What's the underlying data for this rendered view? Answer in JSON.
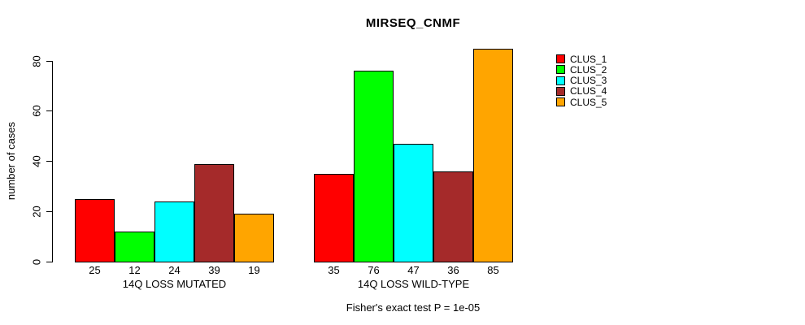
{
  "chart_data": {
    "type": "bar",
    "title": "MIRSEQ_CNMF",
    "ylabel": "number of cases",
    "xlabel": "",
    "categories": [
      "14Q LOSS MUTATED",
      "14Q LOSS WILD-TYPE"
    ],
    "series": [
      {
        "name": "CLUS_1",
        "color": "#FF0000",
        "values": [
          25,
          35
        ]
      },
      {
        "name": "CLUS_2",
        "color": "#00FF00",
        "values": [
          12,
          76
        ]
      },
      {
        "name": "CLUS_3",
        "color": "#00FFFF",
        "values": [
          24,
          47
        ]
      },
      {
        "name": "CLUS_4",
        "color": "#A52A2A",
        "values": [
          39,
          36
        ]
      },
      {
        "name": "CLUS_5",
        "color": "#FFA500",
        "values": [
          19,
          85
        ]
      }
    ],
    "bar_value_labels": [
      [
        25,
        12,
        24,
        39,
        19
      ],
      [
        35,
        76,
        47,
        36,
        85
      ]
    ],
    "yticks": [
      0,
      20,
      40,
      60,
      80
    ],
    "ylim": [
      0,
      85
    ],
    "grid": false,
    "legend_position": "top-right",
    "legend_entries": [
      "CLUS_1",
      "CLUS_2",
      "CLUS_3",
      "CLUS_4",
      "CLUS_5"
    ],
    "annotation": "Fisher's exact test P = 1e-05",
    "text_color": "#000000",
    "background_color": "#FFFFFF"
  }
}
